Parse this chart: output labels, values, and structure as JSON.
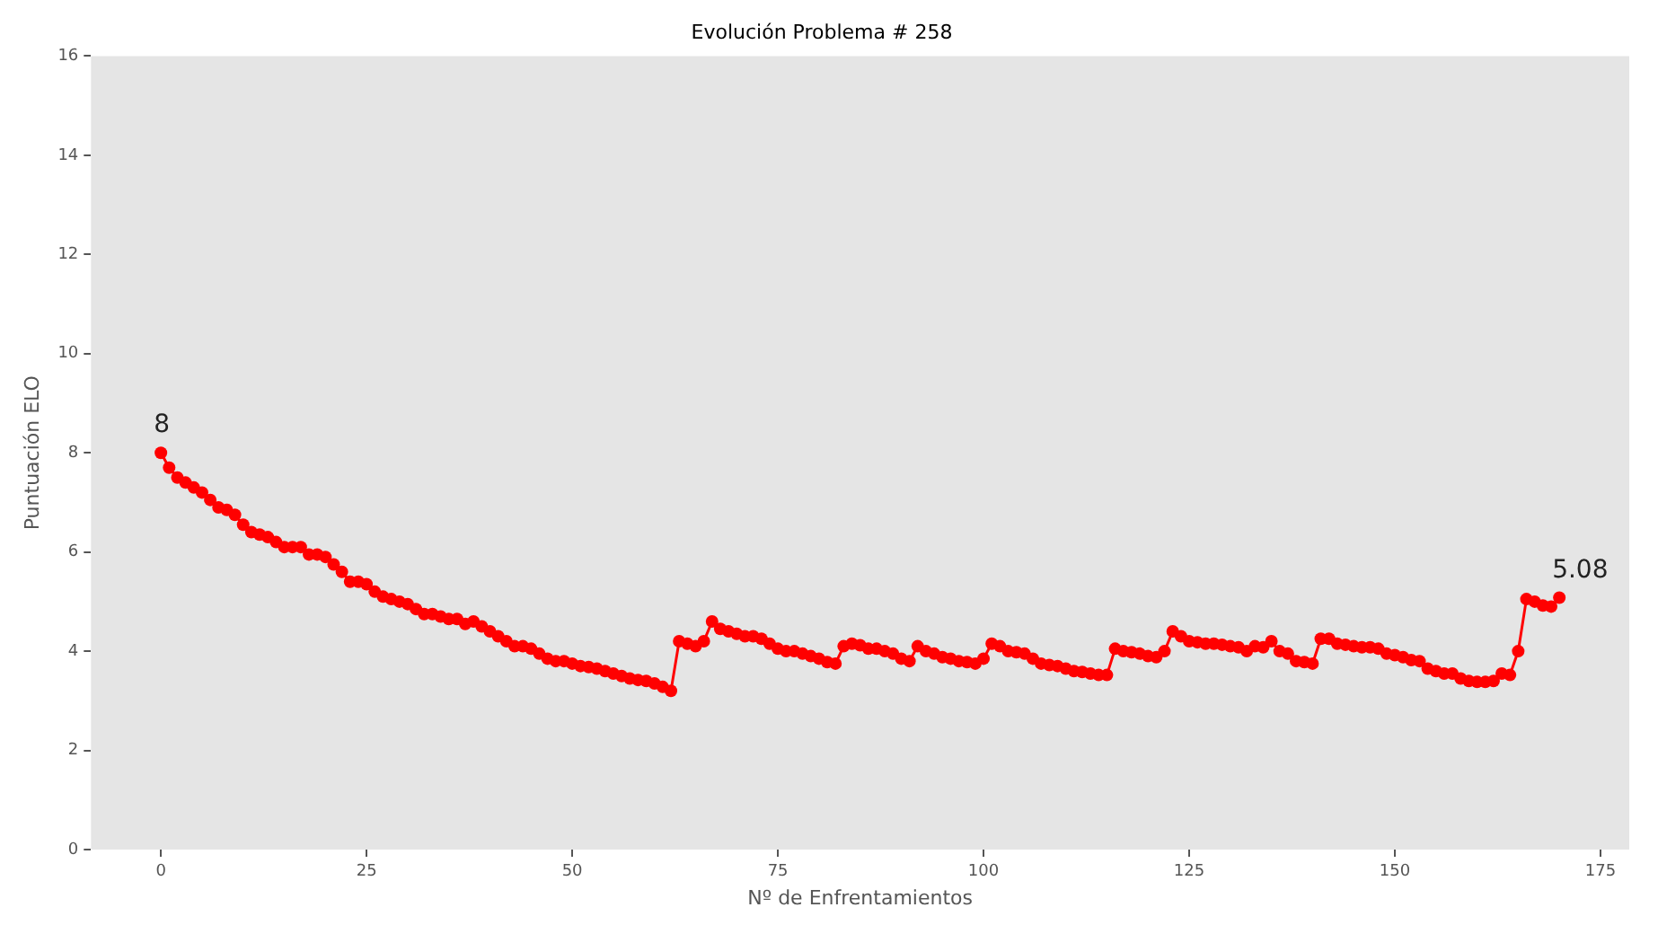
{
  "chart_data": {
    "type": "line",
    "title": "Evolución Problema # 258",
    "xlabel": "Nº de Enfrentamientos",
    "ylabel": "Puntuación ELO",
    "x": [
      0,
      1,
      2,
      3,
      4,
      5,
      6,
      7,
      8,
      9,
      10,
      11,
      12,
      13,
      14,
      15,
      16,
      17,
      18,
      19,
      20,
      21,
      22,
      23,
      24,
      25,
      26,
      27,
      28,
      29,
      30,
      31,
      32,
      33,
      34,
      35,
      36,
      37,
      38,
      39,
      40,
      41,
      42,
      43,
      44,
      45,
      46,
      47,
      48,
      49,
      50,
      51,
      52,
      53,
      54,
      55,
      56,
      57,
      58,
      59,
      60,
      61,
      62,
      63,
      64,
      65,
      66,
      67,
      68,
      69,
      70,
      71,
      72,
      73,
      74,
      75,
      76,
      77,
      78,
      79,
      80,
      81,
      82,
      83,
      84,
      85,
      86,
      87,
      88,
      89,
      90,
      91,
      92,
      93,
      94,
      95,
      96,
      97,
      98,
      99,
      100,
      101,
      102,
      103,
      104,
      105,
      106,
      107,
      108,
      109,
      110,
      111,
      112,
      113,
      114,
      115,
      116,
      117,
      118,
      119,
      120,
      121,
      122,
      123,
      124,
      125,
      126,
      127,
      128,
      129,
      130,
      131,
      132,
      133,
      134,
      135,
      136,
      137,
      138,
      139,
      140,
      141,
      142,
      143,
      144,
      145,
      146,
      147,
      148,
      149,
      150,
      151,
      152,
      153,
      154,
      155,
      156,
      157,
      158,
      159,
      160,
      161,
      162,
      163,
      164,
      165,
      166,
      167,
      168,
      169,
      170
    ],
    "series": [
      {
        "color": "#ff0000",
        "values": [
          8.0,
          7.7,
          7.5,
          7.4,
          7.3,
          7.2,
          7.05,
          6.9,
          6.85,
          6.75,
          6.55,
          6.4,
          6.35,
          6.3,
          6.2,
          6.1,
          6.1,
          6.1,
          5.95,
          5.95,
          5.9,
          5.75,
          5.6,
          5.4,
          5.4,
          5.35,
          5.2,
          5.1,
          5.05,
          5.0,
          4.95,
          4.85,
          4.75,
          4.75,
          4.7,
          4.65,
          4.65,
          4.55,
          4.6,
          4.5,
          4.4,
          4.3,
          4.2,
          4.1,
          4.1,
          4.05,
          3.95,
          3.85,
          3.8,
          3.8,
          3.75,
          3.7,
          3.68,
          3.65,
          3.6,
          3.55,
          3.5,
          3.45,
          3.42,
          3.4,
          3.35,
          3.28,
          3.2,
          4.2,
          4.15,
          4.1,
          4.2,
          4.6,
          4.45,
          4.4,
          4.35,
          4.3,
          4.3,
          4.25,
          4.15,
          4.05,
          4.0,
          4.0,
          3.95,
          3.9,
          3.85,
          3.78,
          3.75,
          4.1,
          4.15,
          4.12,
          4.05,
          4.05,
          4.0,
          3.95,
          3.85,
          3.8,
          4.1,
          4.0,
          3.95,
          3.88,
          3.85,
          3.8,
          3.78,
          3.75,
          3.85,
          4.15,
          4.1,
          4.0,
          3.98,
          3.95,
          3.85,
          3.75,
          3.72,
          3.7,
          3.65,
          3.6,
          3.58,
          3.55,
          3.52,
          3.52,
          4.05,
          4.0,
          3.98,
          3.95,
          3.9,
          3.88,
          4.0,
          4.4,
          4.3,
          4.2,
          4.18,
          4.15,
          4.15,
          4.13,
          4.1,
          4.08,
          4.0,
          4.1,
          4.08,
          4.2,
          4.0,
          3.95,
          3.8,
          3.78,
          3.75,
          4.25,
          4.25,
          4.15,
          4.13,
          4.1,
          4.08,
          4.08,
          4.05,
          3.95,
          3.92,
          3.88,
          3.82,
          3.8,
          3.65,
          3.6,
          3.55,
          3.55,
          3.45,
          3.4,
          3.38,
          3.38,
          3.4,
          3.55,
          3.52,
          4.0,
          5.05,
          5.0,
          4.92,
          4.9,
          5.08
        ]
      }
    ],
    "annotations": [
      {
        "text": "8",
        "x": 0,
        "y": 8
      },
      {
        "text": "5.08",
        "x": 170,
        "y": 5.08
      }
    ],
    "xlim": [
      -8.5,
      178.5
    ],
    "xticks": [
      0,
      25,
      50,
      75,
      100,
      125,
      150,
      175
    ],
    "ylim": [
      0,
      16
    ],
    "yticks": [
      0,
      2,
      4,
      6,
      8,
      10,
      12,
      14,
      16
    ],
    "grid": false,
    "legend": false,
    "marker": "circle",
    "line_style": "solid"
  }
}
